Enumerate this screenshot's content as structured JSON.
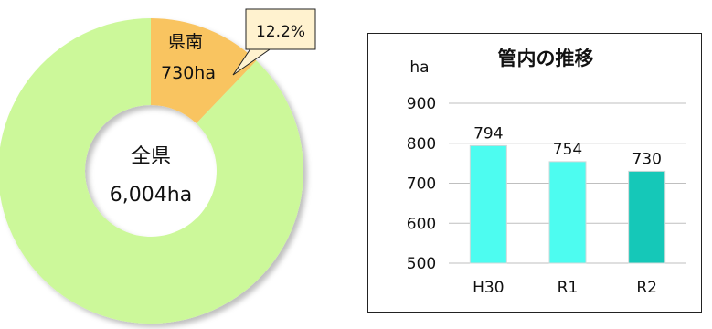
{
  "chart_data": [
    {
      "type": "pie",
      "donut": true,
      "slices": [
        {
          "label": "県南",
          "value": 730,
          "value_label": "730ha",
          "percent_label": "12.2%",
          "color": "#f9c460"
        },
        {
          "label": "",
          "value": 5274,
          "color": "#ccf89a"
        }
      ],
      "center_label": "全県",
      "center_value": "6,004ha"
    },
    {
      "type": "bar",
      "title": "管内の推移",
      "ylabel": "ha",
      "categories": [
        "H30",
        "R1",
        "R2"
      ],
      "values": [
        794,
        754,
        730
      ],
      "data_labels": [
        "794",
        "754",
        "730"
      ],
      "colors": [
        "#4dfcf0",
        "#4dfcf0",
        "#15c8b8"
      ],
      "ylim": [
        500,
        900
      ],
      "yticks": [
        "500",
        "600",
        "700",
        "800",
        "900"
      ],
      "grid": true
    }
  ]
}
